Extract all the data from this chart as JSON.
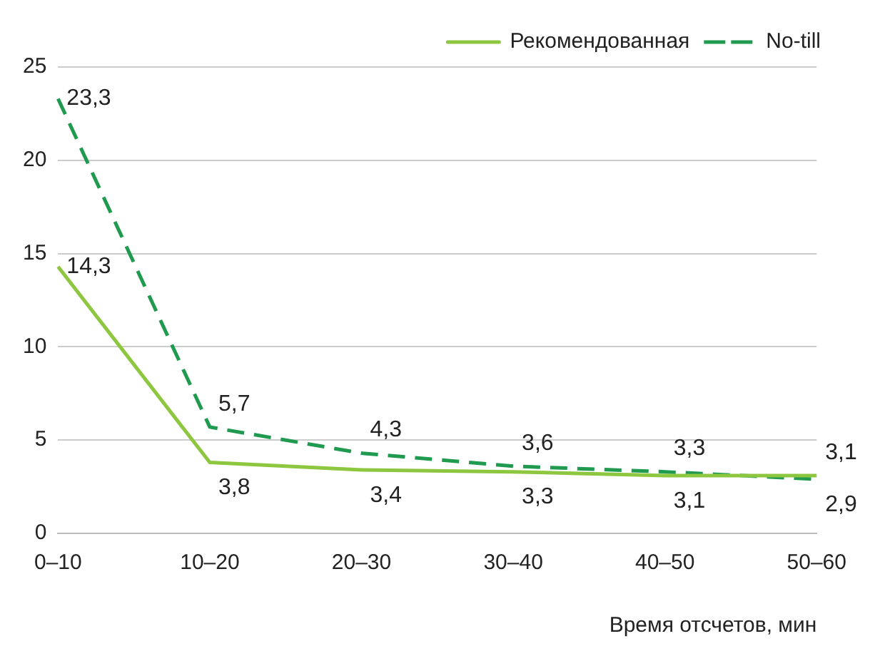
{
  "chart_data": {
    "type": "line",
    "categories": [
      "0–10",
      "10–20",
      "20–30",
      "30–40",
      "40–50",
      "50–60"
    ],
    "series": [
      {
        "name": "Рекомендованная",
        "color": "#8dc63f",
        "line_style": "solid",
        "values": [
          14.3,
          3.8,
          3.4,
          3.3,
          3.1,
          3.1
        ],
        "value_labels": [
          "14,3",
          "3,8",
          "3,4",
          "3,3",
          "3,1",
          "3,1"
        ]
      },
      {
        "name": "No-till",
        "color": "#1f9a4e",
        "line_style": "dashed",
        "values": [
          23.3,
          5.7,
          4.3,
          3.6,
          3.3,
          2.9
        ],
        "value_labels": [
          "23,3",
          "5,7",
          "4,3",
          "3,6",
          "3,3",
          "2,9"
        ]
      }
    ],
    "xlabel": "Время отсчетов, мин",
    "ylim": [
      0,
      25
    ],
    "yticks": [
      0,
      5,
      10,
      15,
      20,
      25
    ],
    "grid": "y",
    "legend": "top right",
    "marker": "none"
  }
}
